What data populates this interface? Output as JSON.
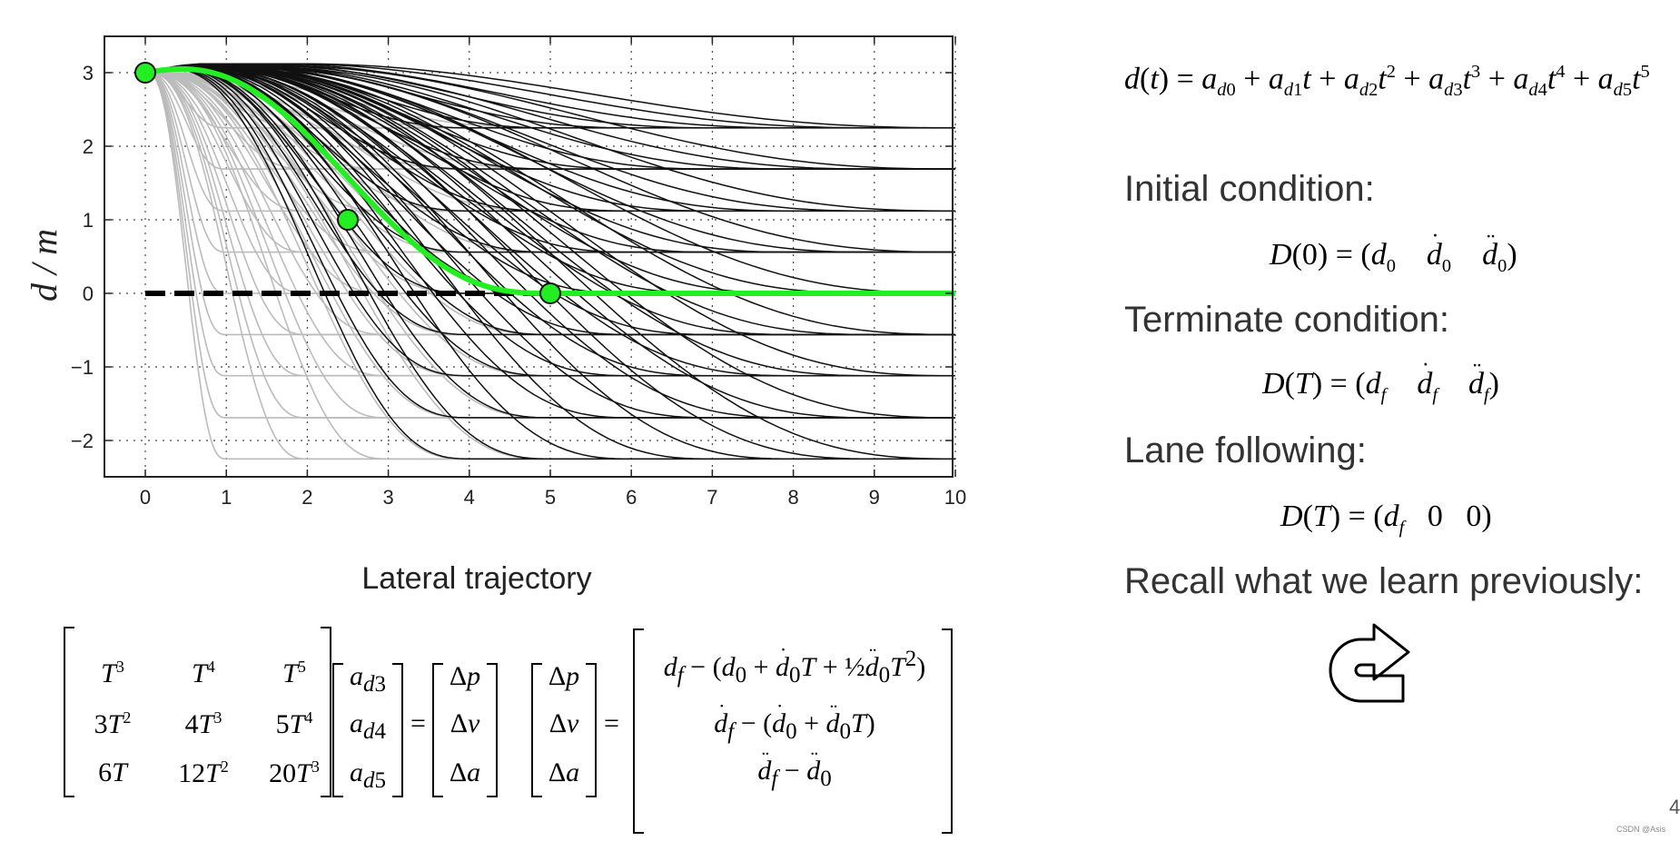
{
  "chart_data": {
    "type": "line",
    "title": "",
    "xlabel": "",
    "ylabel": "d / m",
    "xlim": [
      -0.5,
      10
    ],
    "ylim": [
      -2.5,
      3.5
    ],
    "x_ticks": [
      "0",
      "1",
      "2",
      "3",
      "4",
      "5",
      "6",
      "7",
      "8",
      "9",
      "10"
    ],
    "y_ticks": [
      "3",
      "2",
      "1",
      "0",
      "−1",
      "−2"
    ],
    "grid": true,
    "start": [
      0,
      3
    ],
    "lateral_targets": [
      2.25,
      1.69,
      1.12,
      0.56,
      0,
      -0.56,
      -1.12,
      -1.69,
      -2.25
    ],
    "candidate_end_times_light": [
      1,
      2,
      3,
      4,
      5
    ],
    "candidate_end_times_dark": [
      4,
      5,
      6,
      7,
      8,
      9,
      10
    ],
    "highlight_series": {
      "name": "",
      "color": "#22ee22",
      "points": [
        [
          0,
          3
        ],
        [
          2.5,
          1
        ],
        [
          5,
          0
        ],
        [
          10,
          0
        ]
      ],
      "markers": [
        [
          0,
          3
        ],
        [
          2.5,
          1
        ],
        [
          5,
          0
        ]
      ]
    },
    "reference_line": {
      "y": 0,
      "x_end": 5,
      "style": "dashed"
    }
  },
  "caption": "Lateral trajectory",
  "polynomial": {
    "lhs": "d(t) = a",
    "text": "d(t) = a_d0 + a_d1 t + a_d2 t^2 + a_d3 t^3 + a_d4 t^4 + a_d5 t^5"
  },
  "conditions": {
    "initial_label": "Initial condition:",
    "terminate_label": "Terminate condition:",
    "lane_label": "Lane following:",
    "recall_label": "Recall what we learn previously:"
  },
  "matrix": {
    "rows": [
      [
        "T^3",
        "T^4",
        "T^5"
      ],
      [
        "3T^2",
        "4T^3",
        "5T^4"
      ],
      [
        "6T",
        "12T^2",
        "20T^3"
      ]
    ],
    "coeffs": [
      "a_d3",
      "a_d4",
      "a_d5"
    ],
    "deltas": [
      "Δp",
      "Δv",
      "Δa"
    ]
  },
  "page_number": "4",
  "watermark": "CSDN @Asis"
}
